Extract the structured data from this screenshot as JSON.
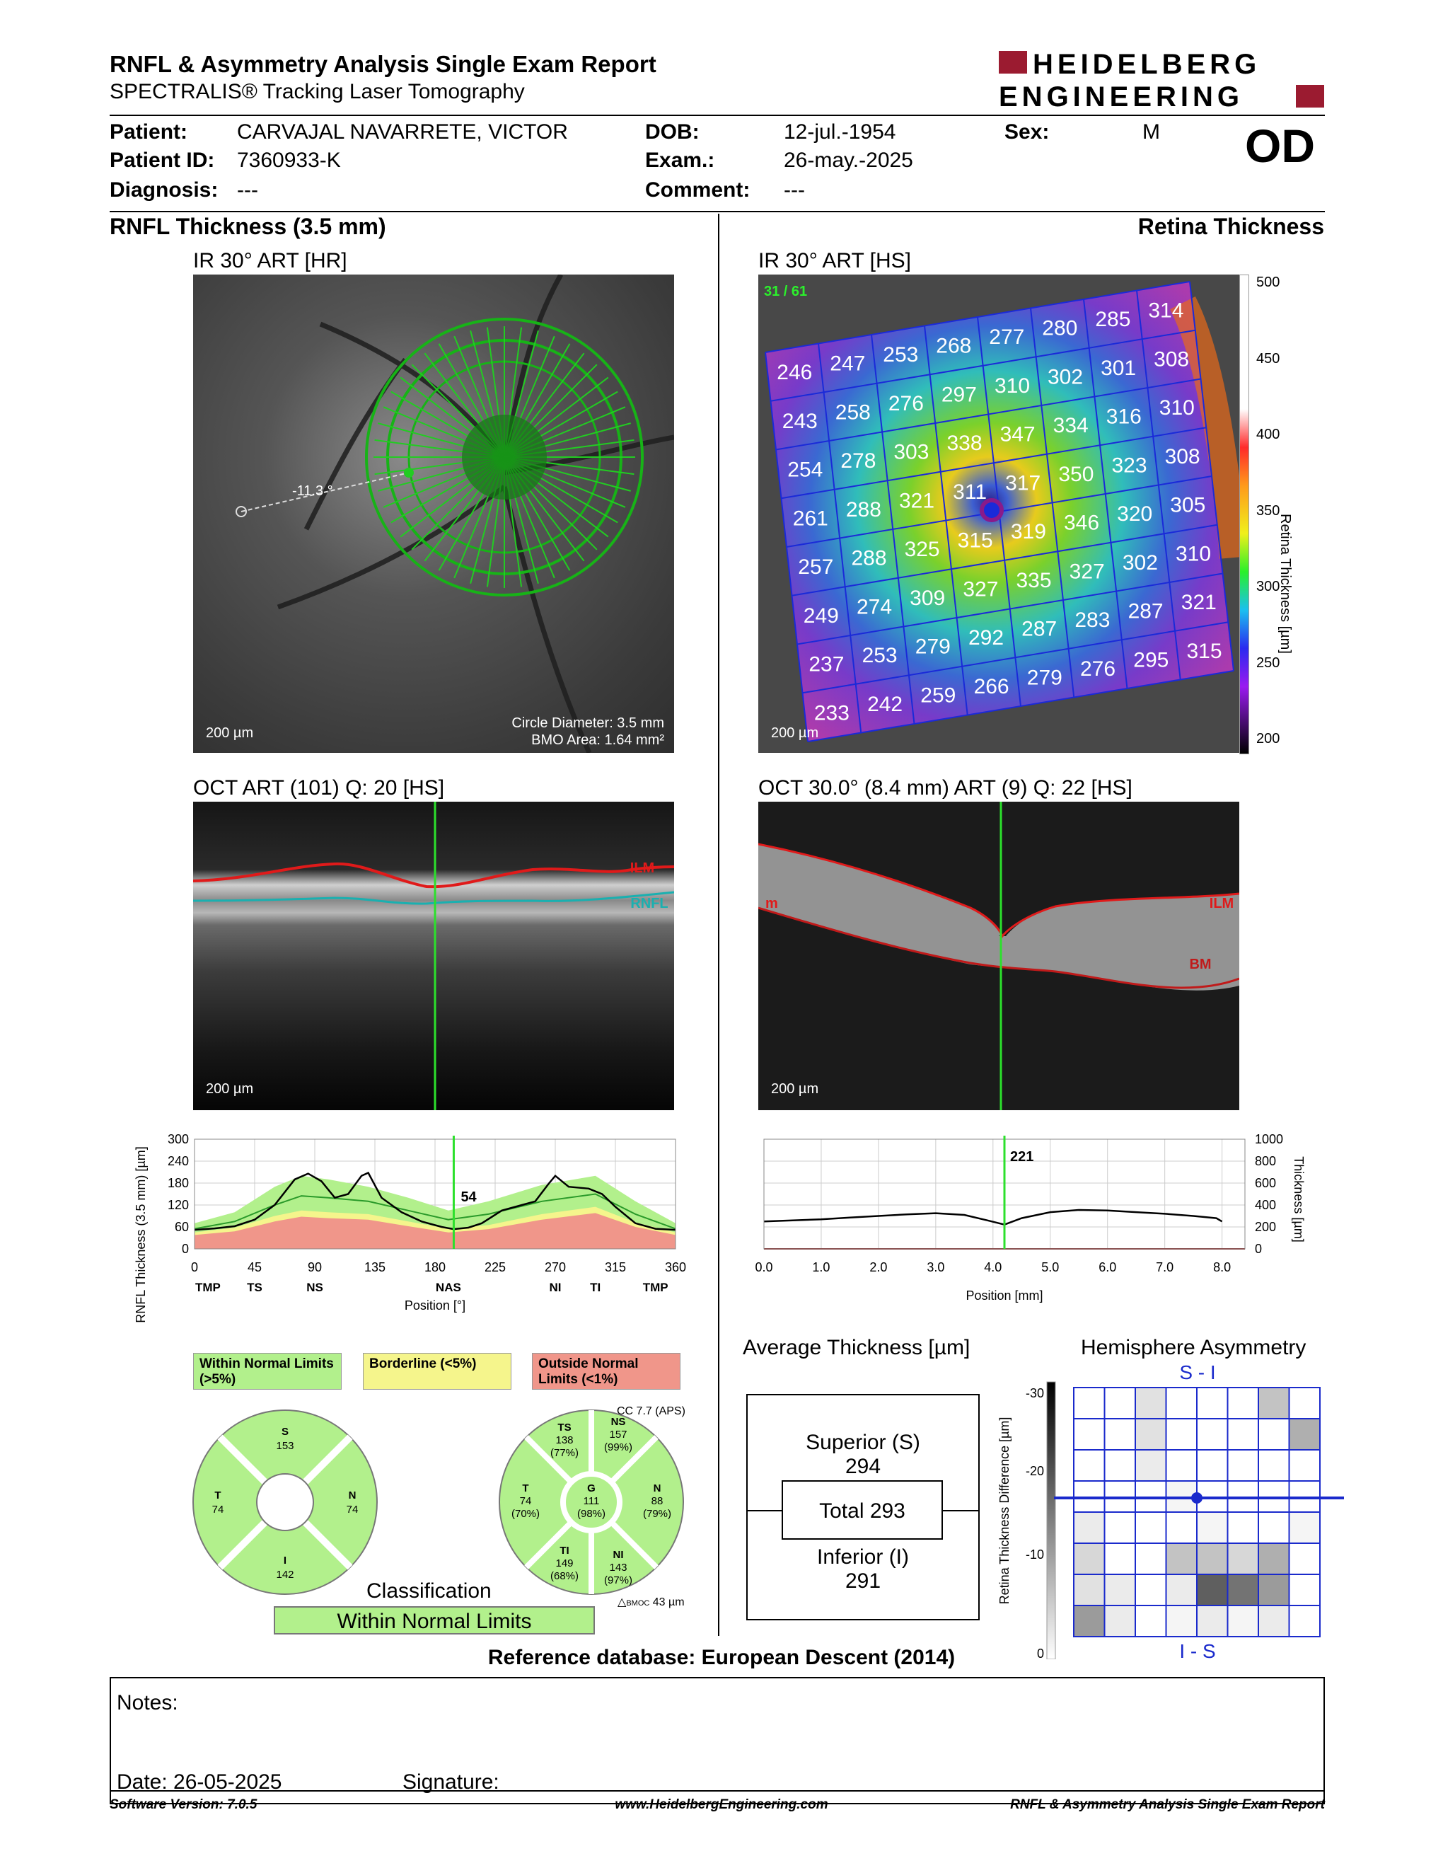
{
  "header": {
    "title": "RNFL & Asymmetry Analysis Single Exam Report",
    "subtitle": "SPECTRALIS® Tracking Laser Tomography",
    "logo_line1": "HEIDELBERG",
    "logo_line2": "ENGINEERING",
    "eye": "OD"
  },
  "patient": {
    "patient_label": "Patient:",
    "patient_value": "CARVAJAL NAVARRETE, VICTOR",
    "id_label": "Patient ID:",
    "id_value": "7360933-K",
    "diag_label": "Diagnosis:",
    "diag_value": "---",
    "dob_label": "DOB:",
    "dob_value": "12-jul.-1954",
    "exam_label": "Exam.:",
    "exam_value": "26-may.-2025",
    "comment_label": "Comment:",
    "comment_value": "---",
    "sex_label": "Sex:",
    "sex_value": "M"
  },
  "left": {
    "section_title": "RNFL Thickness (3.5 mm)",
    "ir_caption": "IR 30° ART [HR]",
    "ir_scale": "200 µm",
    "ir_angle": "-11.3 °",
    "circle_diameter": "Circle Diameter: 3.5 mm",
    "bmo_area": "BMO Area: 1.64 mm²",
    "oct_caption": "OCT ART (101) Q: 20 [HS]",
    "oct_scale": "200 µm",
    "ilm": "ILM",
    "rnfl": "RNFL"
  },
  "right": {
    "section_title": "Retina Thickness",
    "ir_caption": "IR 30° ART [HS]",
    "ir_scale": "200 µm",
    "counter": "31 / 61",
    "colorbar_label": "Retina Thickness [µm]",
    "colorbar_ticks": [
      "500",
      "450",
      "400",
      "350",
      "300",
      "250",
      "200"
    ],
    "oct_caption": "OCT 30.0° (8.4 mm) ART (9) Q: 22 [HS]",
    "oct_scale": "200 µm",
    "ilm": "ILM",
    "bm": "BM",
    "m": "m"
  },
  "grid_values": [
    [
      "246",
      "247",
      "253",
      "268",
      "277",
      "280",
      "285",
      "314"
    ],
    [
      "243",
      "258",
      "276",
      "297",
      "310",
      "302",
      "301",
      "308"
    ],
    [
      "254",
      "278",
      "303",
      "338",
      "347",
      "334",
      "316",
      "310"
    ],
    [
      "261",
      "288",
      "321",
      "311",
      "317",
      "350",
      "323",
      "308"
    ],
    [
      "257",
      "288",
      "325",
      "315",
      "319",
      "346",
      "320",
      "305"
    ],
    [
      "249",
      "274",
      "309",
      "327",
      "335",
      "327",
      "302",
      "310"
    ],
    [
      "237",
      "253",
      "279",
      "292",
      "287",
      "283",
      "287",
      "321"
    ],
    [
      "233",
      "242",
      "259",
      "266",
      "279",
      "276",
      "295",
      "315"
    ]
  ],
  "rnfl_chart": {
    "type": "line",
    "ylabel": "RNFL Thickness (3.5 mm) [µm]",
    "xlabel": "Position [°]",
    "y_ticks": [
      "300",
      "240",
      "180",
      "120",
      "60",
      "0"
    ],
    "x_ticks": [
      "0",
      "45",
      "90",
      "135",
      "180",
      "225",
      "270",
      "315",
      "360"
    ],
    "sector_ticks": [
      "TMP",
      "TS",
      "NS",
      "NAS",
      "NI",
      "TI",
      "TMP"
    ],
    "cursor_value": "54",
    "ylim": [
      0,
      300
    ],
    "xlim": [
      0,
      360
    ],
    "cursor_x": 194,
    "measured": [
      [
        0,
        52
      ],
      [
        15,
        56
      ],
      [
        30,
        62
      ],
      [
        45,
        80
      ],
      [
        60,
        120
      ],
      [
        75,
        190
      ],
      [
        85,
        206
      ],
      [
        95,
        185
      ],
      [
        105,
        140
      ],
      [
        115,
        150
      ],
      [
        125,
        200
      ],
      [
        130,
        208
      ],
      [
        140,
        140
      ],
      [
        155,
        100
      ],
      [
        170,
        75
      ],
      [
        185,
        60
      ],
      [
        194,
        54
      ],
      [
        205,
        58
      ],
      [
        215,
        70
      ],
      [
        230,
        105
      ],
      [
        245,
        120
      ],
      [
        255,
        130
      ],
      [
        265,
        178
      ],
      [
        270,
        200
      ],
      [
        280,
        170
      ],
      [
        295,
        165
      ],
      [
        305,
        150
      ],
      [
        315,
        115
      ],
      [
        330,
        70
      ],
      [
        345,
        55
      ],
      [
        360,
        52
      ]
    ],
    "normal_upper": [
      [
        0,
        70
      ],
      [
        30,
        100
      ],
      [
        60,
        170
      ],
      [
        80,
        200
      ],
      [
        100,
        190
      ],
      [
        130,
        170
      ],
      [
        160,
        140
      ],
      [
        190,
        105
      ],
      [
        220,
        130
      ],
      [
        260,
        175
      ],
      [
        300,
        200
      ],
      [
        330,
        130
      ],
      [
        360,
        70
      ]
    ],
    "normal_mean": [
      [
        0,
        55
      ],
      [
        30,
        75
      ],
      [
        60,
        120
      ],
      [
        80,
        145
      ],
      [
        100,
        140
      ],
      [
        130,
        130
      ],
      [
        160,
        105
      ],
      [
        190,
        80
      ],
      [
        220,
        95
      ],
      [
        260,
        130
      ],
      [
        300,
        150
      ],
      [
        330,
        95
      ],
      [
        360,
        55
      ]
    ],
    "borderline": [
      [
        0,
        45
      ],
      [
        30,
        58
      ],
      [
        60,
        90
      ],
      [
        80,
        105
      ],
      [
        100,
        100
      ],
      [
        130,
        95
      ],
      [
        160,
        75
      ],
      [
        190,
        55
      ],
      [
        220,
        65
      ],
      [
        260,
        95
      ],
      [
        300,
        115
      ],
      [
        330,
        72
      ],
      [
        360,
        45
      ]
    ],
    "outside": [
      [
        0,
        38
      ],
      [
        30,
        48
      ],
      [
        60,
        75
      ],
      [
        80,
        88
      ],
      [
        100,
        84
      ],
      [
        130,
        80
      ],
      [
        160,
        62
      ],
      [
        190,
        45
      ],
      [
        220,
        54
      ],
      [
        260,
        80
      ],
      [
        300,
        98
      ],
      [
        330,
        60
      ],
      [
        360,
        38
      ]
    ]
  },
  "retina_chart": {
    "type": "line",
    "ylabel": "Thickness [µm]",
    "xlabel": "Position [mm]",
    "y_ticks": [
      "1000",
      "800",
      "600",
      "400",
      "200",
      "0"
    ],
    "x_ticks": [
      "0.0",
      "1.0",
      "2.0",
      "3.0",
      "4.0",
      "5.0",
      "6.0",
      "7.0",
      "8.0"
    ],
    "cursor_value": "221",
    "ylim": [
      0,
      1000
    ],
    "xlim": [
      0,
      8.4
    ],
    "cursor_x": 4.2,
    "profile": [
      [
        0,
        250
      ],
      [
        0.5,
        260
      ],
      [
        1.0,
        270
      ],
      [
        1.5,
        285
      ],
      [
        2.0,
        300
      ],
      [
        2.5,
        315
      ],
      [
        3.0,
        325
      ],
      [
        3.5,
        310
      ],
      [
        3.9,
        260
      ],
      [
        4.2,
        221
      ],
      [
        4.5,
        280
      ],
      [
        5.0,
        335
      ],
      [
        5.5,
        355
      ],
      [
        6.0,
        350
      ],
      [
        6.5,
        335
      ],
      [
        7.0,
        320
      ],
      [
        7.5,
        300
      ],
      [
        7.9,
        280
      ],
      [
        8.0,
        250
      ]
    ]
  },
  "legend": {
    "within": "Within Normal Limits (>5%)",
    "borderline": "Borderline (<5%)",
    "outside": "Outside Normal Limits (<1%)"
  },
  "sectors_4": {
    "S": {
      "label": "S",
      "value": "153"
    },
    "T": {
      "label": "T",
      "value": "74"
    },
    "N": {
      "label": "N",
      "value": "74"
    },
    "I": {
      "label": "I",
      "value": "142"
    }
  },
  "sectors_6": {
    "cc": "CC 7.7 (APS)",
    "TS": {
      "label": "TS",
      "value": "138",
      "pct": "(77%)"
    },
    "NS": {
      "label": "NS",
      "value": "157",
      "pct": "(99%)"
    },
    "T": {
      "label": "T",
      "value": "74",
      "pct": "(70%)"
    },
    "G": {
      "label": "G",
      "value": "111",
      "pct": "(98%)"
    },
    "N": {
      "label": "N",
      "value": "88",
      "pct": "(79%)"
    },
    "TI": {
      "label": "TI",
      "value": "149",
      "pct": "(68%)"
    },
    "NI": {
      "label": "NI",
      "value": "143",
      "pct": "(97%)"
    },
    "bmoc": "43 µm",
    "bmoc_label": "BMOC"
  },
  "classification": {
    "title": "Classification",
    "value": "Within Normal Limits"
  },
  "average": {
    "title": "Average Thickness [µm]",
    "superior_label": "Superior (S)",
    "superior_value": "294",
    "total": "Total 293",
    "inferior_label": "Inferior (I)",
    "inferior_value": "291"
  },
  "asymmetry": {
    "title": "Hemisphere Asymmetry",
    "top_label": "S - I",
    "bottom_label": "I - S",
    "scale_label": "Retina Thickness Difference [µm]",
    "scale_ticks": [
      "-30",
      "-20",
      "-10",
      "0"
    ],
    "cells": [
      [
        0,
        0,
        0.15,
        0,
        0,
        0,
        0.3,
        0
      ],
      [
        0,
        0,
        0.15,
        0,
        0,
        0,
        0,
        0.4
      ],
      [
        0,
        0,
        0.1,
        0,
        0,
        0,
        0,
        0
      ],
      [
        0,
        0,
        0,
        0.05,
        0,
        0,
        0,
        0
      ],
      [
        0.1,
        0,
        0,
        0,
        0.05,
        0,
        0,
        0.05
      ],
      [
        0.2,
        0,
        0,
        0.3,
        0.3,
        0.2,
        0.4,
        0
      ],
      [
        0.15,
        0.1,
        0,
        0.1,
        0.8,
        0.7,
        0.5,
        0
      ],
      [
        0.5,
        0.1,
        0,
        0.05,
        0.1,
        0.05,
        0.1,
        0
      ]
    ]
  },
  "reference": "Reference database: European Descent (2014)",
  "notes": {
    "notes_label": "Notes:",
    "date": "Date: 26-05-2025",
    "signature": "Signature:"
  },
  "footer": {
    "software": "Software Version: 7.0.5",
    "url": "www.HeidelbergEngineering.com",
    "report": "RNFL & Asymmetry Analysis Single Exam Report"
  }
}
